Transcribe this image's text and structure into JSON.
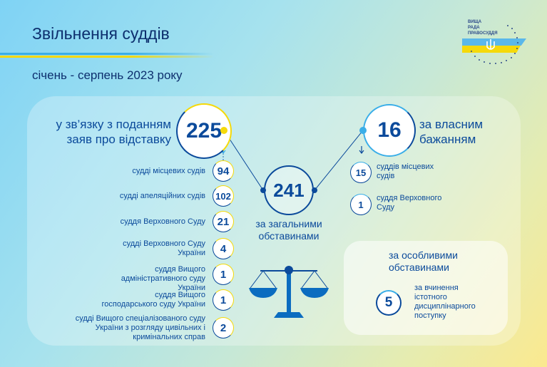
{
  "title": "Звільнення суддів",
  "subtitle": "січень - серпень 2023 року",
  "logo": {
    "text": [
      "ВИЩА",
      "РАДА",
      "ПРАВОСУДДЯ"
    ]
  },
  "colors": {
    "blue": "#0b4a9b",
    "yellow": "#f5d90a",
    "light_blue": "#3aaee8"
  },
  "resignation": {
    "label": "у зв’язку з поданням заяв про відставку",
    "total": "225",
    "items": [
      {
        "label": "судді місцевих судів",
        "value": "94"
      },
      {
        "label": "судді апеляційних судів",
        "value": "102"
      },
      {
        "label": "суддя Верховного Суду",
        "value": "21"
      },
      {
        "label": "судді Верховного Суду України",
        "value": "4"
      },
      {
        "label": "суддя Вищого адміністративного суду України",
        "value": "1"
      },
      {
        "label": "суддя Вищого господарського суду України",
        "value": "1"
      },
      {
        "label": "судді Вищого спеціалізованого суду України з розгляду цивільних і кримінальних справ",
        "value": "2"
      }
    ]
  },
  "general": {
    "total": "241",
    "label": "за загальними обставинами"
  },
  "own_will": {
    "label": "за власним бажанням",
    "total": "16",
    "items": [
      {
        "label": "суддів місцевих судів",
        "value": "15"
      },
      {
        "label": "суддя Верховного Суду",
        "value": "1"
      }
    ]
  },
  "special": {
    "label": "за особливими обставинами",
    "value": "5",
    "item_label": "за вчинення істотного дисциплінарного поступку"
  }
}
